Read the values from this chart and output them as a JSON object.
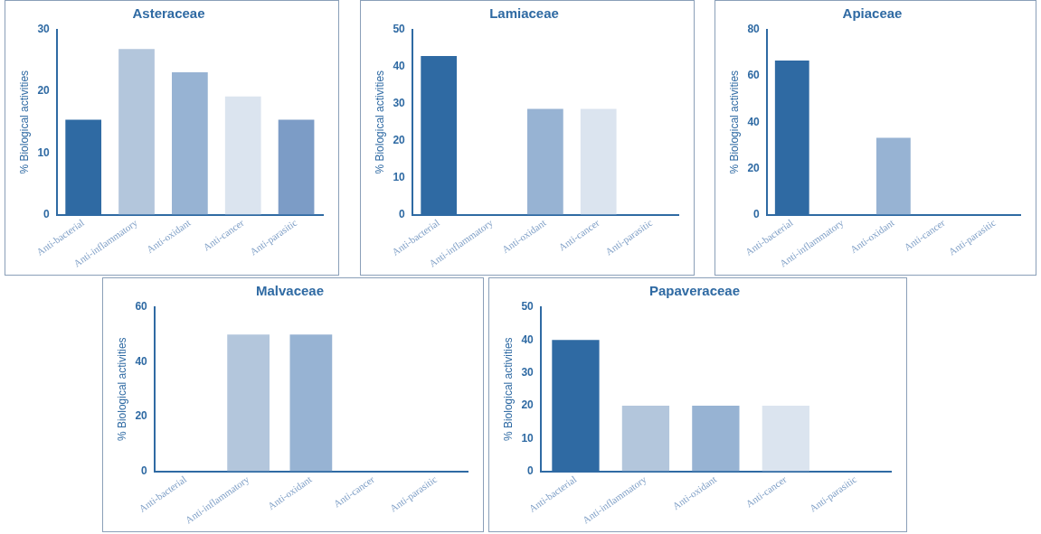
{
  "chart_data": [
    {
      "type": "bar",
      "title": "Asteraceae",
      "ylabel": "% Biological activities",
      "categories": [
        "Anti-bacterial",
        "Anti-inflammatory",
        "Anti-oxidant",
        "Anti-cancer",
        "Anti-parasitic"
      ],
      "values": [
        15.4,
        26.9,
        23.1,
        19.2,
        15.4
      ],
      "colors": [
        "#2f6aa3",
        "#b3c6dc",
        "#97b3d3",
        "#dbe4ef",
        "#7c9cc6"
      ],
      "ylim": [
        0,
        30
      ],
      "yticks": [
        0,
        10,
        20,
        30
      ],
      "grid": false
    },
    {
      "type": "bar",
      "title": "Lamiaceae",
      "ylabel": "% Biological activities",
      "categories": [
        "Anti-bacterial",
        "Anti-inflammatory",
        "Anti-oxidant",
        "Anti-cancer",
        "Anti-parasitic"
      ],
      "values": [
        42.9,
        0,
        28.6,
        28.6,
        0
      ],
      "colors": [
        "#2f6aa3",
        "#b3c6dc",
        "#97b3d3",
        "#dbe4ef",
        "#7c9cc6"
      ],
      "ylim": [
        0,
        50
      ],
      "yticks": [
        0,
        10,
        20,
        30,
        40,
        50
      ],
      "grid": false
    },
    {
      "type": "bar",
      "title": "Apiaceae",
      "ylabel": "% Biological activities",
      "categories": [
        "Anti-bacterial",
        "Anti-inflammatory",
        "Anti-oxidant",
        "Anti-cancer",
        "Anti-parasitic"
      ],
      "values": [
        66.7,
        0,
        33.3,
        0,
        0
      ],
      "colors": [
        "#2f6aa3",
        "#b3c6dc",
        "#97b3d3",
        "#dbe4ef",
        "#7c9cc6"
      ],
      "ylim": [
        0,
        80
      ],
      "yticks": [
        0,
        20,
        40,
        60,
        80
      ],
      "grid": false
    },
    {
      "type": "bar",
      "title": "Malvaceae",
      "ylabel": "% Biological activities",
      "categories": [
        "Anti-bacterial",
        "Anti-inflammatory",
        "Anti-oxidant",
        "Anti-cancer",
        "Anti-parasitic"
      ],
      "values": [
        0,
        50,
        50,
        0,
        0
      ],
      "colors": [
        "#2f6aa3",
        "#b3c6dc",
        "#97b3d3",
        "#dbe4ef",
        "#7c9cc6"
      ],
      "ylim": [
        0,
        60
      ],
      "yticks": [
        0,
        20,
        40,
        60
      ],
      "grid": false
    },
    {
      "type": "bar",
      "title": "Papaveraceae",
      "ylabel": "% Biological activities",
      "categories": [
        "Anti-bacterial",
        "Anti-inflammatory",
        "Anti-oxidant",
        "Anti-cancer",
        "Anti-parasitic"
      ],
      "values": [
        40,
        20,
        20,
        20,
        0
      ],
      "colors": [
        "#2f6aa3",
        "#b3c6dc",
        "#97b3d3",
        "#dbe4ef",
        "#7c9cc6"
      ],
      "ylim": [
        0,
        50
      ],
      "yticks": [
        0,
        10,
        20,
        30,
        40,
        50
      ],
      "grid": false
    }
  ]
}
